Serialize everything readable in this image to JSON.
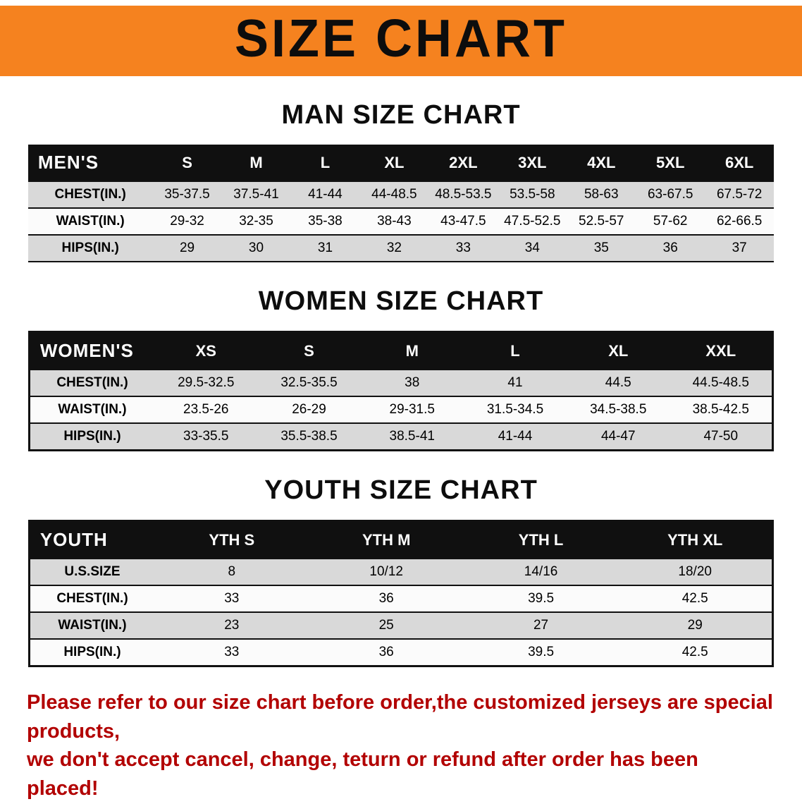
{
  "banner": {
    "title": "SIZE CHART",
    "background_color": "#f5821f"
  },
  "sections": [
    {
      "id": "men",
      "heading": "MAN SIZE CHART",
      "header": [
        "MEN'S",
        "S",
        "M",
        "L",
        "XL",
        "2XL",
        "3XL",
        "4XL",
        "5XL",
        "6XL"
      ],
      "rows": [
        [
          "CHEST(IN.)",
          "35-37.5",
          "37.5-41",
          "41-44",
          "44-48.5",
          "48.5-53.5",
          "53.5-58",
          "58-63",
          "63-67.5",
          "67.5-72"
        ],
        [
          "WAIST(IN.)",
          "29-32",
          "32-35",
          "35-38",
          "38-43",
          "43-47.5",
          "47.5-52.5",
          "52.5-57",
          "57-62",
          "62-66.5"
        ],
        [
          "HIPS(IN.)",
          "29",
          "30",
          "31",
          "32",
          "33",
          "34",
          "35",
          "36",
          "37"
        ]
      ]
    },
    {
      "id": "women",
      "heading": "WOMEN SIZE CHART",
      "header": [
        "WOMEN'S",
        "XS",
        "S",
        "M",
        "L",
        "XL",
        "XXL"
      ],
      "rows": [
        [
          "CHEST(IN.)",
          "29.5-32.5",
          "32.5-35.5",
          "38",
          "41",
          "44.5",
          "44.5-48.5"
        ],
        [
          "WAIST(IN.)",
          "23.5-26",
          "26-29",
          "29-31.5",
          "31.5-34.5",
          "34.5-38.5",
          "38.5-42.5"
        ],
        [
          "HIPS(IN.)",
          "33-35.5",
          "35.5-38.5",
          "38.5-41",
          "41-44",
          "44-47",
          "47-50"
        ]
      ]
    },
    {
      "id": "youth",
      "heading": "YOUTH SIZE CHART",
      "header": [
        "YOUTH",
        "YTH S",
        "YTH M",
        "YTH L",
        "YTH XL"
      ],
      "rows": [
        [
          "U.S.SIZE",
          "8",
          "10/12",
          "14/16",
          "18/20"
        ],
        [
          "CHEST(IN.)",
          "33",
          "36",
          "39.5",
          "42.5"
        ],
        [
          "WAIST(IN.)",
          "23",
          "25",
          "27",
          "29"
        ],
        [
          "HIPS(IN.)",
          "33",
          "36",
          "39.5",
          "42.5"
        ]
      ]
    }
  ],
  "footer": {
    "line1": "Please refer to our size chart before order,the customized jerseys are special products,",
    "line2": "we don't accept cancel, change, teturn or refund after order has been placed!",
    "text_color": "#b20000"
  }
}
